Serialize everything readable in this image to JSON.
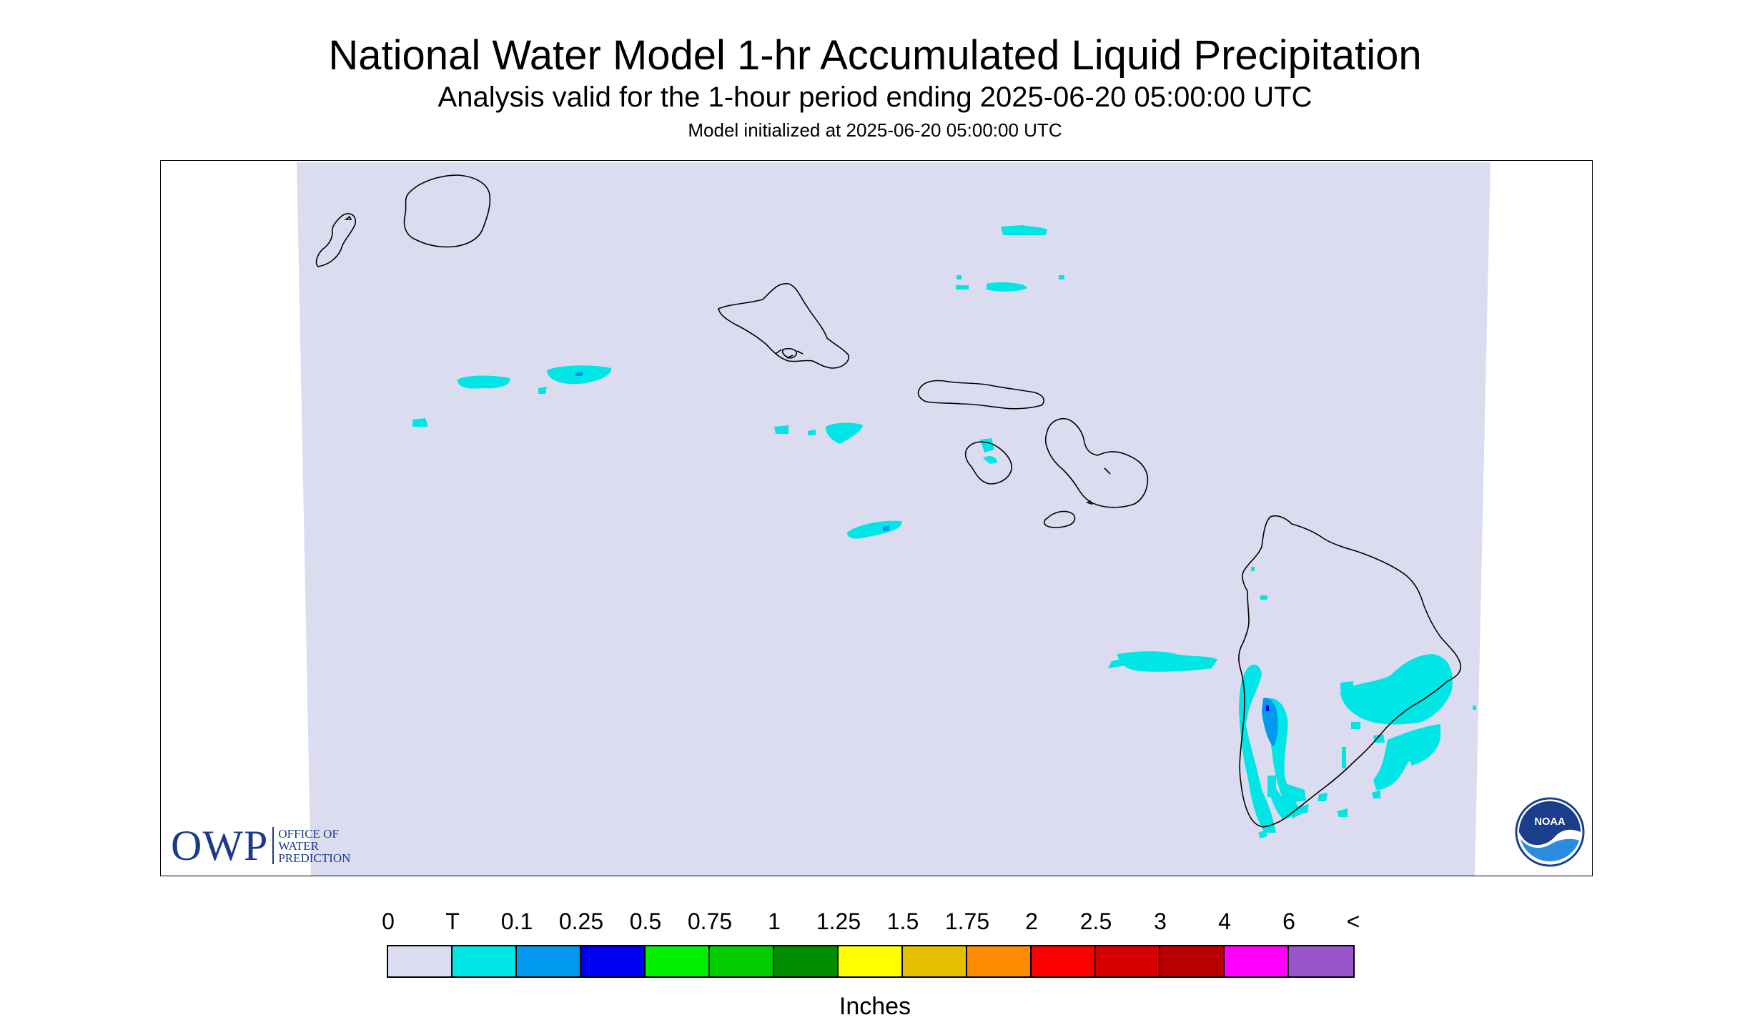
{
  "title": "National Water Model 1-hr Accumulated Liquid Precipitation",
  "subtitle": "Analysis valid for the 1-hour period ending 2025-06-20 05:00:00 UTC",
  "init_line": "Model initialized at 2025-06-20 05:00:00 UTC",
  "colors": {
    "background_zero": "#dcdcf0",
    "trace": "#00e6e6",
    "coastline": "#000000",
    "owp_blue": "#1b3a8c",
    "noaa_blue": "#1a5fb4"
  },
  "logos": {
    "owp_letters": "OWP",
    "owp_line1": "OFFICE OF",
    "owp_line2": "WATER",
    "owp_line3": "PREDICTION",
    "noaa_text": "NOAA"
  },
  "legend": {
    "labels": [
      "0",
      "T",
      "0.1",
      "0.25",
      "0.5",
      "0.75",
      "1",
      "1.25",
      "1.5",
      "1.75",
      "2",
      "2.5",
      "3",
      "4",
      "6",
      "<"
    ],
    "colors": [
      "#dcdcf0",
      "#00e6e6",
      "#0099ee",
      "#0000f0",
      "#00f000",
      "#00cc00",
      "#008c00",
      "#ffff00",
      "#e6be00",
      "#ff8c00",
      "#ff0000",
      "#d70000",
      "#b90000",
      "#ff00ff",
      "#9955cc"
    ],
    "units": "Inches"
  }
}
